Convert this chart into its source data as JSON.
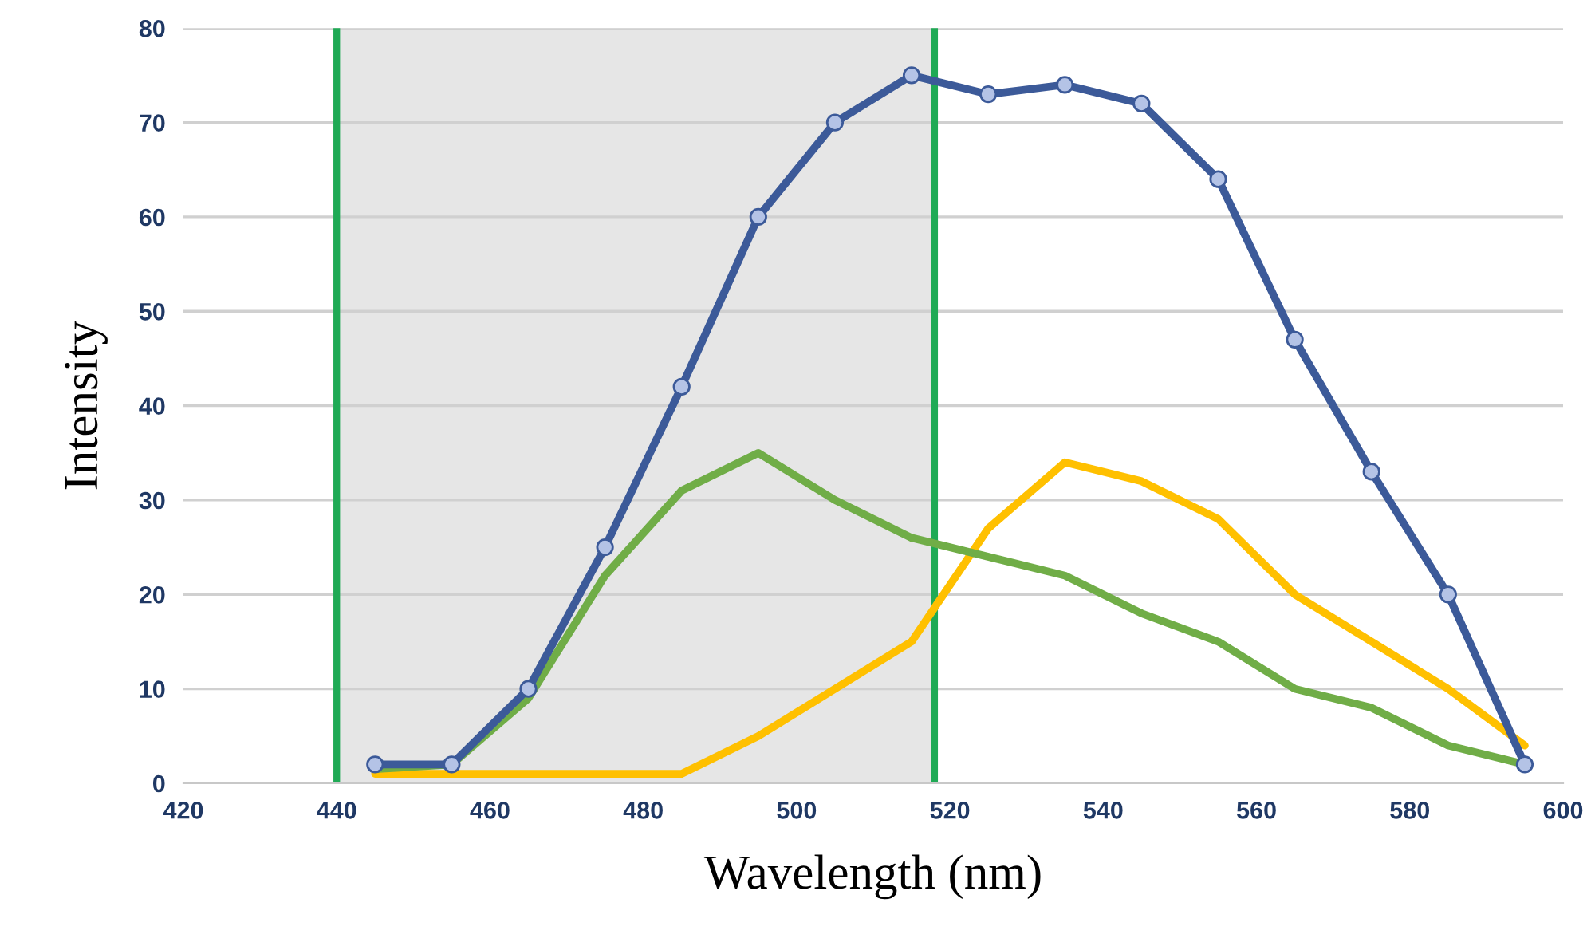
{
  "chart_data": {
    "type": "line",
    "xlabel": "Wavelength (nm)",
    "ylabel": "Intensity",
    "xlim": [
      420,
      600
    ],
    "xticks": [
      420,
      440,
      460,
      480,
      500,
      520,
      540,
      560,
      580,
      600
    ],
    "ylim": [
      0,
      80
    ],
    "yticks": [
      0,
      10,
      20,
      30,
      40,
      50,
      60,
      70,
      80
    ],
    "grid": "y",
    "series": [
      {
        "color": "#3c5a99",
        "marker": "circle",
        "x": [
          445,
          455,
          465,
          475,
          485,
          495,
          505,
          515,
          525,
          535,
          545,
          555,
          565,
          575,
          585,
          595
        ],
        "values": [
          2,
          2,
          10,
          25,
          42,
          60,
          70,
          75,
          73,
          74,
          72,
          64,
          47,
          33,
          20,
          2
        ]
      },
      {
        "color": "#70ad47",
        "marker": "none",
        "x": [
          445,
          455,
          465,
          475,
          485,
          495,
          505,
          515,
          525,
          535,
          545,
          555,
          565,
          575,
          585,
          595
        ],
        "values": [
          1.5,
          2,
          9,
          22,
          31,
          35,
          30,
          26,
          24,
          22,
          18,
          15,
          10,
          8,
          4,
          2
        ]
      },
      {
        "color": "#ffc000",
        "marker": "none",
        "x": [
          445,
          455,
          465,
          475,
          485,
          495,
          505,
          515,
          525,
          535,
          545,
          555,
          565,
          575,
          585,
          595
        ],
        "values": [
          1,
          1,
          1,
          1,
          1,
          5,
          10,
          15,
          27,
          34,
          32,
          28,
          20,
          15,
          10,
          4
        ]
      }
    ],
    "bands": [
      {
        "axis": "x",
        "from": 440,
        "to": 518,
        "color": "#e6e6e6"
      }
    ],
    "ref_lines": [
      {
        "axis": "x",
        "value": 440,
        "color": "#1faa55",
        "line_style": "solid"
      },
      {
        "axis": "x",
        "value": 518,
        "color": "#1faa55",
        "line_style": "solid"
      }
    ]
  }
}
